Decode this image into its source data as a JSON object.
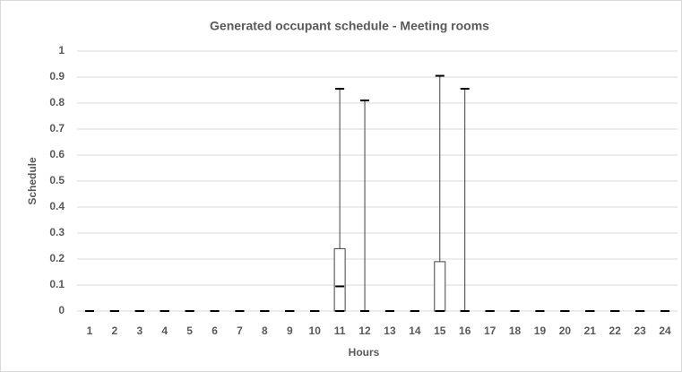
{
  "chart_data": {
    "type": "box",
    "title": "Generated occupant schedule - Meeting rooms",
    "x_label": "Hours",
    "y_label": "Schedule",
    "categories": [
      "1",
      "2",
      "3",
      "4",
      "5",
      "6",
      "7",
      "8",
      "9",
      "10",
      "11",
      "12",
      "13",
      "14",
      "15",
      "16",
      "17",
      "18",
      "19",
      "20",
      "21",
      "22",
      "23",
      "24"
    ],
    "min": [
      0,
      0,
      0,
      0,
      0,
      0,
      0,
      0,
      0,
      0,
      0,
      0,
      0,
      0,
      0,
      0,
      0,
      0,
      0,
      0,
      0,
      0,
      0,
      0
    ],
    "q1": [
      0,
      0,
      0,
      0,
      0,
      0,
      0,
      0,
      0,
      0,
      0,
      0,
      0,
      0,
      0,
      0,
      0,
      0,
      0,
      0,
      0,
      0,
      0,
      0
    ],
    "median": [
      0,
      0,
      0,
      0,
      0,
      0,
      0,
      0,
      0,
      0,
      0.095,
      0,
      0,
      0,
      0,
      0,
      0,
      0,
      0,
      0,
      0,
      0,
      0,
      0
    ],
    "q3": [
      0,
      0,
      0,
      0,
      0,
      0,
      0,
      0,
      0,
      0,
      0.24,
      0,
      0,
      0,
      0.19,
      0,
      0,
      0,
      0,
      0,
      0,
      0,
      0,
      0
    ],
    "max": [
      0,
      0,
      0,
      0,
      0,
      0,
      0,
      0,
      0,
      0,
      0.855,
      0.81,
      0,
      0,
      0.905,
      0.855,
      0,
      0,
      0,
      0,
      0,
      0,
      0,
      0
    ],
    "color": "#404040",
    "ylim": [
      0,
      1
    ],
    "yticks": [
      0,
      0.1,
      0.2,
      0.3,
      0.4,
      0.5,
      0.6,
      0.7,
      0.8,
      0.9,
      1
    ],
    "grid": true
  }
}
